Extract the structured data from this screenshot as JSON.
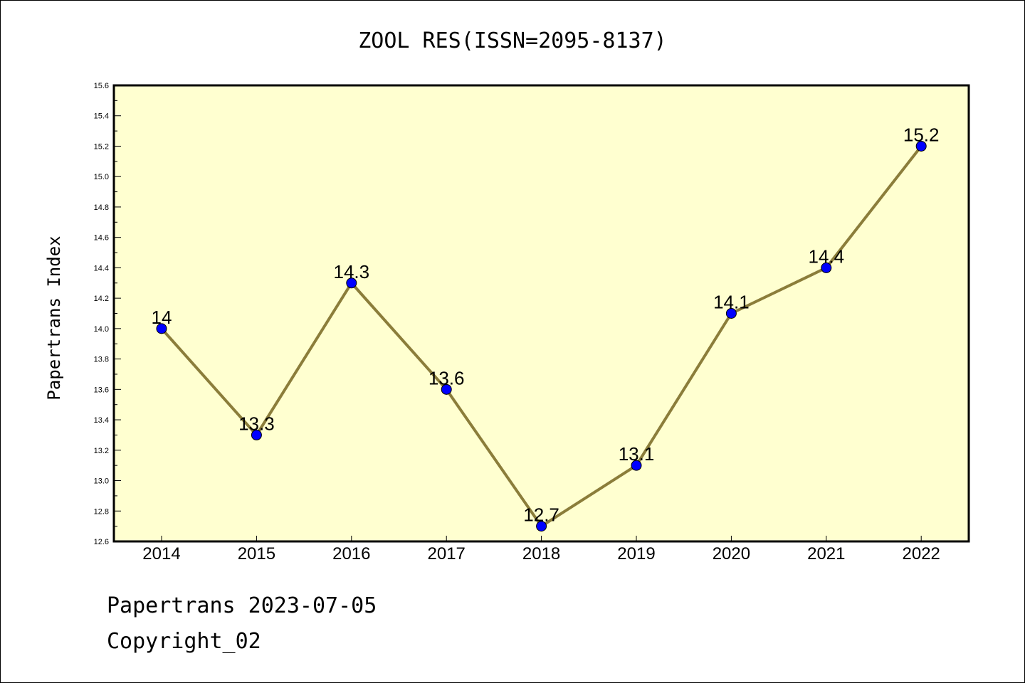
{
  "chart_data": {
    "type": "line",
    "title": "ZOOL RES(ISSN=2095-8137)",
    "ylabel": "Papertrans Index",
    "xlabel": "",
    "categories": [
      "2014",
      "2015",
      "2016",
      "2017",
      "2018",
      "2019",
      "2020",
      "2021",
      "2022"
    ],
    "series": [
      {
        "values": [
          14.0,
          13.3,
          14.3,
          13.6,
          12.7,
          13.1,
          14.1,
          14.4,
          15.2
        ],
        "labels": [
          "14",
          "13.3",
          "14.3",
          "13.6",
          "12.7",
          "13.1",
          "14.1",
          "14.4",
          "15.2"
        ]
      }
    ],
    "ylim": [
      12.6,
      15.6
    ],
    "yticks": [
      "12.6",
      "12.8",
      "13.0",
      "13.2",
      "13.4",
      "13.6",
      "13.8",
      "14.0",
      "14.2",
      "14.4",
      "14.6",
      "14.8",
      "15.0",
      "15.2",
      "15.4",
      "15.6"
    ],
    "grid": false,
    "colors": {
      "plot_background": "#ffffd0",
      "line": "#8b7d3a",
      "marker": "#0000ff"
    }
  },
  "footer": {
    "line1": "Papertrans 2023-07-05",
    "line2": "Copyright_02"
  }
}
